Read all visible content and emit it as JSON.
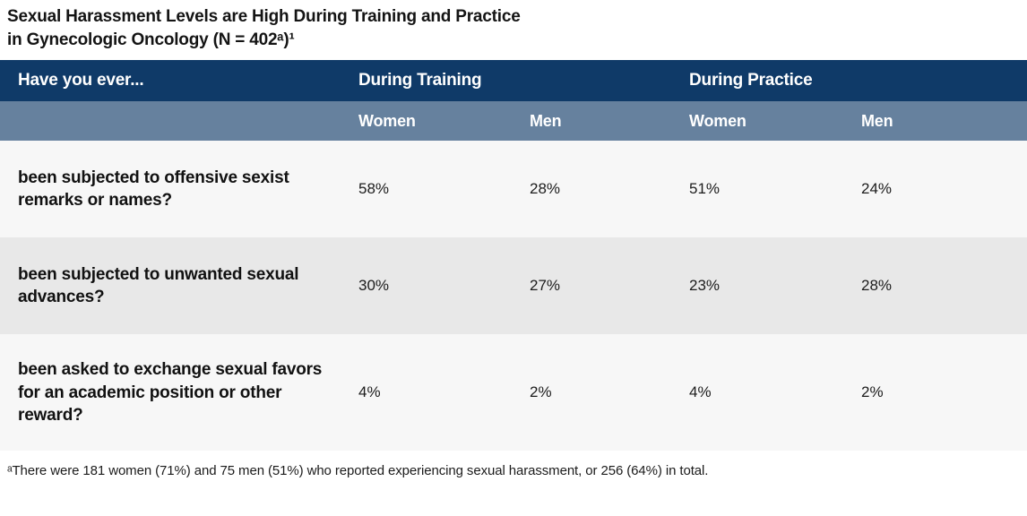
{
  "title": {
    "line1": "Sexual Harassment Levels are High During Training and Practice",
    "line2": "in Gynecologic Oncology (N = 402ᵃ)¹"
  },
  "chart_data": {
    "type": "table",
    "title": "Sexual Harassment Levels are High During Training and Practice in Gynecologic Oncology (N = 402ᵃ)¹",
    "header": {
      "row_label": "Have you ever...",
      "groups": [
        "During Training",
        "During Practice"
      ],
      "sub_columns": [
        "Women",
        "Men",
        "Women",
        "Men"
      ]
    },
    "rows": [
      {
        "question": "been subjected to offensive sexist remarks or names?",
        "values": [
          "58%",
          "28%",
          "51%",
          "24%"
        ]
      },
      {
        "question": "been subjected to unwanted sexual advances?",
        "values": [
          "30%",
          "27%",
          "23%",
          "28%"
        ]
      },
      {
        "question": "been asked to exchange sexual favors for an academic position or other reward?",
        "values": [
          "4%",
          "2%",
          "4%",
          "2%"
        ]
      }
    ],
    "footnote": "ᵃThere were 181 women (71%) and 75 men (51%) who reported experiencing sexual harassment, or 256 (64%) in total."
  },
  "colors": {
    "header_navy": "#0f3a68",
    "subheader_blue": "#66819e",
    "row_light": "#f7f7f7",
    "row_gray": "#e8e8e8",
    "title_text": "#141414"
  }
}
